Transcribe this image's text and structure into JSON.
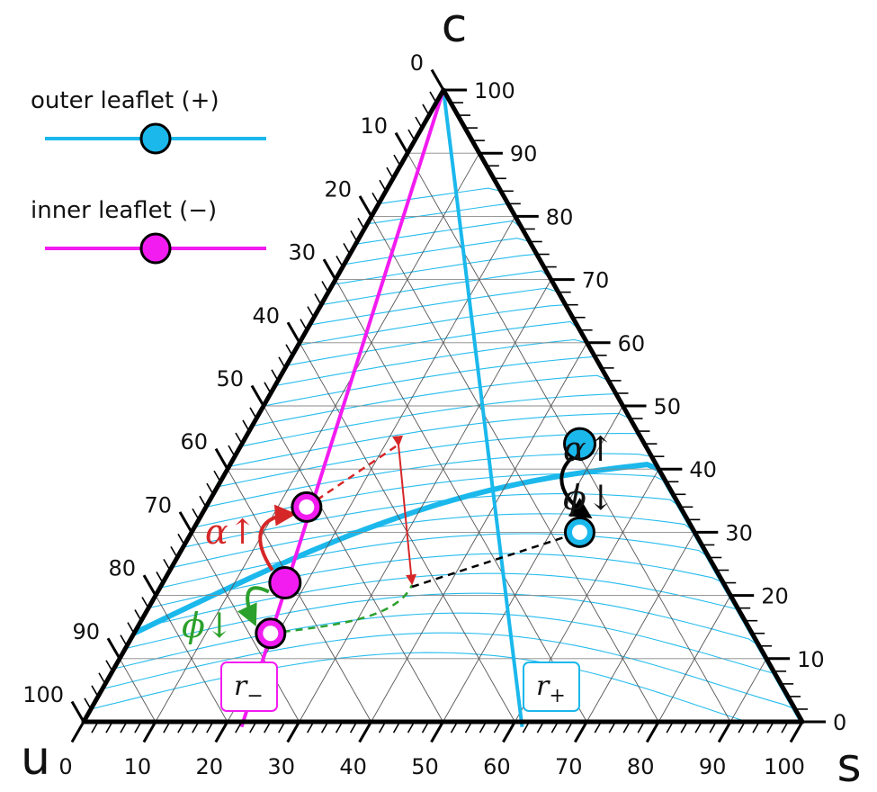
{
  "chart_data": {
    "type": "scatter",
    "subtype": "ternary",
    "title": "",
    "corners": {
      "top": "c",
      "left": "u",
      "right": "s"
    },
    "axes": {
      "left_edge": {
        "label": "u",
        "ticks": [
          0,
          10,
          20,
          30,
          40,
          50,
          60,
          70,
          80,
          90,
          100
        ]
      },
      "right_edge": {
        "label": "c",
        "ticks": [
          100,
          90,
          80,
          70,
          60,
          50,
          40,
          30,
          20,
          10,
          0
        ]
      },
      "bottom_edge": {
        "label": "s",
        "ticks": [
          0,
          10,
          20,
          30,
          40,
          50,
          60,
          70,
          80,
          90,
          100
        ]
      },
      "range": [
        0,
        100
      ],
      "grid": true
    },
    "legend": {
      "placement": "top-left",
      "entries": [
        {
          "label": "outer leaflet (+)",
          "color": "#1bb8ec"
        },
        {
          "label": "inner leaflet (−)",
          "color": "#f21cf0"
        }
      ]
    },
    "series": [
      {
        "name": "outer leaflet (+)",
        "color": "#1bb8ec",
        "line": [
          {
            "s": 0,
            "c": 100
          },
          {
            "s": 61,
            "c": 0
          }
        ],
        "points": [
          {
            "s": 47,
            "c": 44,
            "fill": "filled"
          },
          {
            "s": 54,
            "c": 30,
            "fill": "open"
          }
        ]
      },
      {
        "name": "inner leaflet (−)",
        "color": "#f21cf0",
        "line": [
          {
            "s": 0,
            "c": 100
          },
          {
            "s": 22,
            "c": 0
          }
        ],
        "points": [
          {
            "s": 14,
            "c": 34,
            "fill": "open"
          },
          {
            "s": 17,
            "c": 22,
            "fill": "filled"
          },
          {
            "s": 19,
            "c": 14,
            "fill": "open"
          }
        ]
      }
    ],
    "annotations": {
      "greek": [
        {
          "text": "α↑",
          "color": "#111111"
        },
        {
          "text": "ϕ↓",
          "color": "#111111"
        },
        {
          "text": "α↑",
          "color": "#d62728"
        },
        {
          "text": "ϕ↓",
          "color": "#2ca02c"
        }
      ],
      "lever_boxes": [
        {
          "label": "r",
          "sub": "−",
          "color": "#f21cf0"
        },
        {
          "label": "r",
          "sub": "+",
          "color": "#1bb8ec"
        }
      ]
    }
  }
}
